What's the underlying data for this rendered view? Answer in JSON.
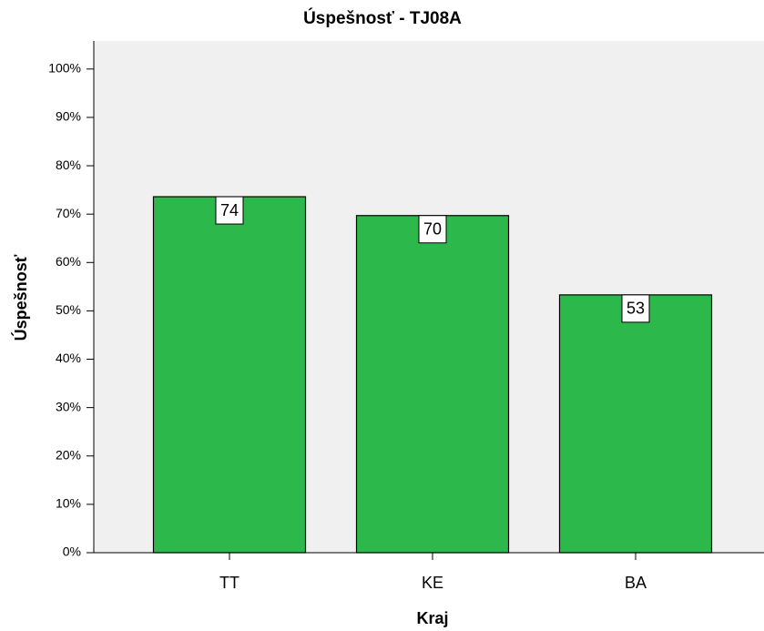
{
  "chart_data": {
    "type": "bar",
    "title": "Úspešnosť - TJ08A",
    "x_label": "Kraj",
    "y_label": "Úspešnosť",
    "categories": [
      "TT",
      "KE",
      "BA"
    ],
    "values": [
      73.6,
      69.7,
      53.3
    ],
    "value_labels": [
      "74",
      "70",
      "53"
    ],
    "color": "#2db84b",
    "ylim": [
      0,
      105.8
    ],
    "yticks": [
      {
        "value": 0,
        "label": "0%"
      },
      {
        "value": 10,
        "label": "10%"
      },
      {
        "value": 20,
        "label": "20%"
      },
      {
        "value": 30,
        "label": "30%"
      },
      {
        "value": 40,
        "label": "40%"
      },
      {
        "value": 50,
        "label": "50%"
      },
      {
        "value": 60,
        "label": "60%"
      },
      {
        "value": 70,
        "label": "70%"
      },
      {
        "value": 80,
        "label": "80%"
      },
      {
        "value": 90,
        "label": "90%"
      },
      {
        "value": 100,
        "label": "100%"
      }
    ],
    "grid": false
  }
}
